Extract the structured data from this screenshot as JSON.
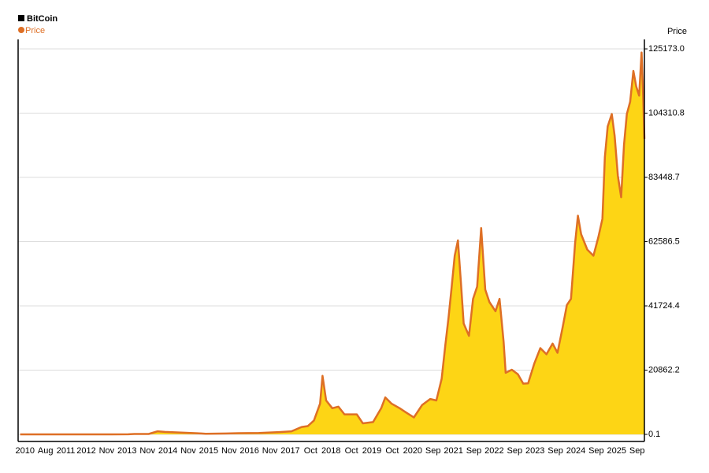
{
  "chart_data": {
    "type": "area",
    "title": "BitCoin",
    "y_label": "Price",
    "legend": "top-left",
    "grid": true,
    "fill_color": "#fdd515",
    "x": [
      2010.55,
      2010.9,
      2011.3,
      2011.45,
      2011.8,
      2012.3,
      2012.8,
      2013.2,
      2013.35,
      2013.7,
      2013.92,
      2014.1,
      2014.5,
      2014.9,
      2015.1,
      2015.6,
      2015.9,
      2016.4,
      2016.9,
      2017.2,
      2017.45,
      2017.6,
      2017.75,
      2017.9,
      2017.96,
      2018.05,
      2018.2,
      2018.35,
      2018.5,
      2018.8,
      2018.95,
      2019.2,
      2019.4,
      2019.5,
      2019.65,
      2019.85,
      2020.0,
      2020.2,
      2020.4,
      2020.6,
      2020.75,
      2020.88,
      2020.97,
      2021.05,
      2021.12,
      2021.2,
      2021.28,
      2021.35,
      2021.42,
      2021.55,
      2021.65,
      2021.75,
      2021.85,
      2021.95,
      2022.05,
      2022.2,
      2022.3,
      2022.4,
      2022.45,
      2022.6,
      2022.75,
      2022.88,
      2023.0,
      2023.15,
      2023.3,
      2023.45,
      2023.6,
      2023.72,
      2023.85,
      2023.95,
      2024.05,
      2024.15,
      2024.22,
      2024.3,
      2024.45,
      2024.6,
      2024.72,
      2024.82,
      2024.88,
      2024.95,
      2025.05,
      2025.12,
      2025.2,
      2025.28,
      2025.35,
      2025.42,
      2025.5,
      2025.58,
      2025.65,
      2025.72,
      2025.78,
      2025.82,
      2025.85
    ],
    "series": [
      {
        "name": "Price",
        "color": "#de6f25",
        "values": [
          0.1,
          0.3,
          1,
          15,
          3,
          5,
          11,
          40,
          120,
          130,
          1000,
          800,
          600,
          350,
          220,
          280,
          400,
          450,
          740,
          1000,
          2400,
          2700,
          4500,
          10000,
          19000,
          11000,
          8500,
          9000,
          6500,
          6500,
          3600,
          4000,
          8500,
          12000,
          10000,
          8500,
          7200,
          5500,
          9500,
          11500,
          11000,
          18000,
          29000,
          38000,
          47000,
          58000,
          63000,
          50000,
          36000,
          32000,
          44000,
          48000,
          67000,
          47000,
          43000,
          40000,
          44000,
          30000,
          20000,
          21000,
          19500,
          16500,
          16600,
          23000,
          28000,
          26000,
          29500,
          26500,
          35000,
          42000,
          44000,
          62000,
          71000,
          65000,
          60000,
          58000,
          64000,
          70000,
          90000,
          100000,
          104000,
          97000,
          84000,
          77000,
          94000,
          104000,
          108000,
          118000,
          113000,
          110000,
          124000,
          110000,
          96000
        ]
      }
    ],
    "ylim": [
      -2300,
      128250
    ],
    "yticks": [
      0.1,
      20862.2,
      41724.4,
      62586.5,
      83448.7,
      104310.8,
      {
        "value": 125173,
        "label": "125173.0"
      }
    ],
    "xlim": [
      2010.5,
      2025.85
    ],
    "xticks": [
      {
        "value": 2010.67,
        "label": "2010"
      },
      {
        "value": 2011.17,
        "label": "Aug"
      },
      {
        "value": 2011.67,
        "label": "2011"
      },
      {
        "value": 2012.17,
        "label": "2012"
      },
      {
        "value": 2012.67,
        "label": "Nov"
      },
      {
        "value": 2013.17,
        "label": "2013"
      },
      {
        "value": 2013.67,
        "label": "Nov"
      },
      {
        "value": 2014.17,
        "label": "2014"
      },
      {
        "value": 2014.67,
        "label": "Nov"
      },
      {
        "value": 2015.17,
        "label": "2015"
      },
      {
        "value": 2015.67,
        "label": "Nov"
      },
      {
        "value": 2016.17,
        "label": "2016"
      },
      {
        "value": 2016.67,
        "label": "Nov"
      },
      {
        "value": 2017.17,
        "label": "2017"
      },
      {
        "value": 2017.67,
        "label": "Oct"
      },
      {
        "value": 2018.17,
        "label": "2018"
      },
      {
        "value": 2018.67,
        "label": "Oct"
      },
      {
        "value": 2019.17,
        "label": "2019"
      },
      {
        "value": 2019.67,
        "label": "Oct"
      },
      {
        "value": 2020.17,
        "label": "2020"
      },
      {
        "value": 2020.67,
        "label": "Sep"
      },
      {
        "value": 2021.17,
        "label": "2021"
      },
      {
        "value": 2021.67,
        "label": "Sep"
      },
      {
        "value": 2022.17,
        "label": "2022"
      },
      {
        "value": 2022.67,
        "label": "Sep"
      },
      {
        "value": 2023.17,
        "label": "2023"
      },
      {
        "value": 2023.67,
        "label": "Sep"
      },
      {
        "value": 2024.17,
        "label": "2024"
      },
      {
        "value": 2024.67,
        "label": "Sep"
      },
      {
        "value": 2025.17,
        "label": "2025"
      },
      {
        "value": 2025.67,
        "label": "Sep"
      }
    ]
  }
}
